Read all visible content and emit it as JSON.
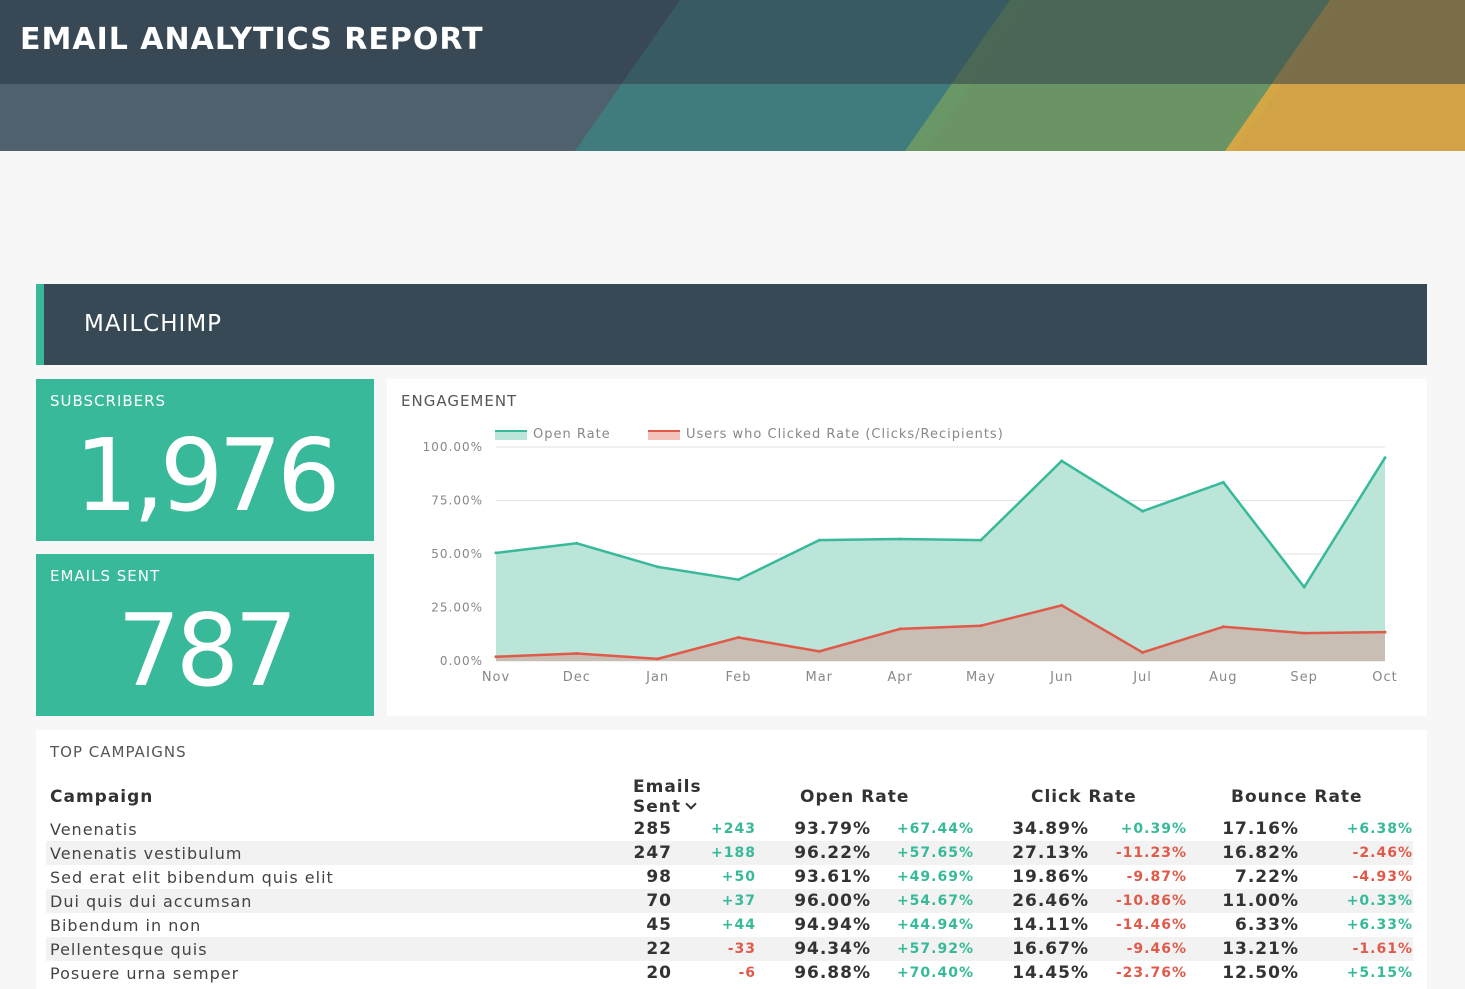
{
  "header": {
    "title": "EMAIL ANALYTICS REPORT"
  },
  "section": {
    "title": "MAILCHIMP"
  },
  "kpis": {
    "subscribers": {
      "label": "SUBSCRIBERS",
      "value": "1,976"
    },
    "emails_sent": {
      "label": "EMAILS SENT",
      "value": "787"
    }
  },
  "colors": {
    "accent": "#37b99a",
    "header": "#364955",
    "negative": "#e05a4a",
    "click_fill": "#c9bcb2",
    "open_fill": "#bce5d9"
  },
  "engagement": {
    "title": "ENGAGEMENT",
    "legend": [
      "Open Rate",
      "Users who Clicked Rate (Clicks/Recipients)"
    ]
  },
  "chart_data": {
    "type": "area",
    "categories": [
      "Nov",
      "Dec",
      "Jan",
      "Feb",
      "Mar",
      "Apr",
      "May",
      "Jun",
      "Jul",
      "Aug",
      "Sep",
      "Oct"
    ],
    "series": [
      {
        "name": "Open Rate",
        "values": [
          50.5,
          55,
          44,
          38,
          56.5,
          57,
          56.5,
          93.5,
          70,
          83.5,
          34.5,
          95
        ],
        "color": "#37b99a"
      },
      {
        "name": "Users who Clicked Rate (Clicks/Recipients)",
        "values": [
          2,
          3.5,
          1,
          11,
          4.5,
          15,
          16.5,
          26,
          4,
          16,
          13,
          13.5
        ],
        "color": "#e05a4a"
      }
    ],
    "yticks": [
      "0.00%",
      "25.00%",
      "50.00%",
      "75.00%",
      "100.00%"
    ],
    "ylim": [
      0,
      100
    ],
    "grid": true,
    "legend_position": "top-left"
  },
  "campaigns": {
    "title": "TOP CAMPAIGNS",
    "headers": {
      "campaign": "Campaign",
      "sent": "Emails Sent",
      "open": "Open Rate",
      "click": "Click Rate",
      "bounce": "Bounce Rate"
    },
    "rows": [
      {
        "name": "Venenatis",
        "sent": "285",
        "sent_d": "+243",
        "open": "93.79%",
        "open_d": "+67.44%",
        "click": "34.89%",
        "click_d": "+0.39%",
        "bounce": "17.16%",
        "bounce_d": "+6.38%"
      },
      {
        "name": "Venenatis vestibulum",
        "sent": "247",
        "sent_d": "+188",
        "open": "96.22%",
        "open_d": "+57.65%",
        "click": "27.13%",
        "click_d": "-11.23%",
        "bounce": "16.82%",
        "bounce_d": "-2.46%"
      },
      {
        "name": "Sed erat elit bibendum quis elit",
        "sent": "98",
        "sent_d": "+50",
        "open": "93.61%",
        "open_d": "+49.69%",
        "click": "19.86%",
        "click_d": "-9.87%",
        "bounce": "7.22%",
        "bounce_d": "-4.93%"
      },
      {
        "name": "Dui quis dui accumsan",
        "sent": "70",
        "sent_d": "+37",
        "open": "96.00%",
        "open_d": "+54.67%",
        "click": "26.46%",
        "click_d": "-10.86%",
        "bounce": "11.00%",
        "bounce_d": "+0.33%"
      },
      {
        "name": "Bibendum in non",
        "sent": "45",
        "sent_d": "+44",
        "open": "94.94%",
        "open_d": "+44.94%",
        "click": "14.11%",
        "click_d": "-14.46%",
        "bounce": "6.33%",
        "bounce_d": "+6.33%"
      },
      {
        "name": "Pellentesque quis",
        "sent": "22",
        "sent_d": "-33",
        "open": "94.34%",
        "open_d": "+57.92%",
        "click": "16.67%",
        "click_d": "-9.46%",
        "bounce": "13.21%",
        "bounce_d": "-1.61%"
      },
      {
        "name": "Posuere urna semper",
        "sent": "20",
        "sent_d": "-6",
        "open": "96.88%",
        "open_d": "+70.40%",
        "click": "14.45%",
        "click_d": "-23.76%",
        "bounce": "12.50%",
        "bounce_d": "+5.15%"
      }
    ]
  }
}
